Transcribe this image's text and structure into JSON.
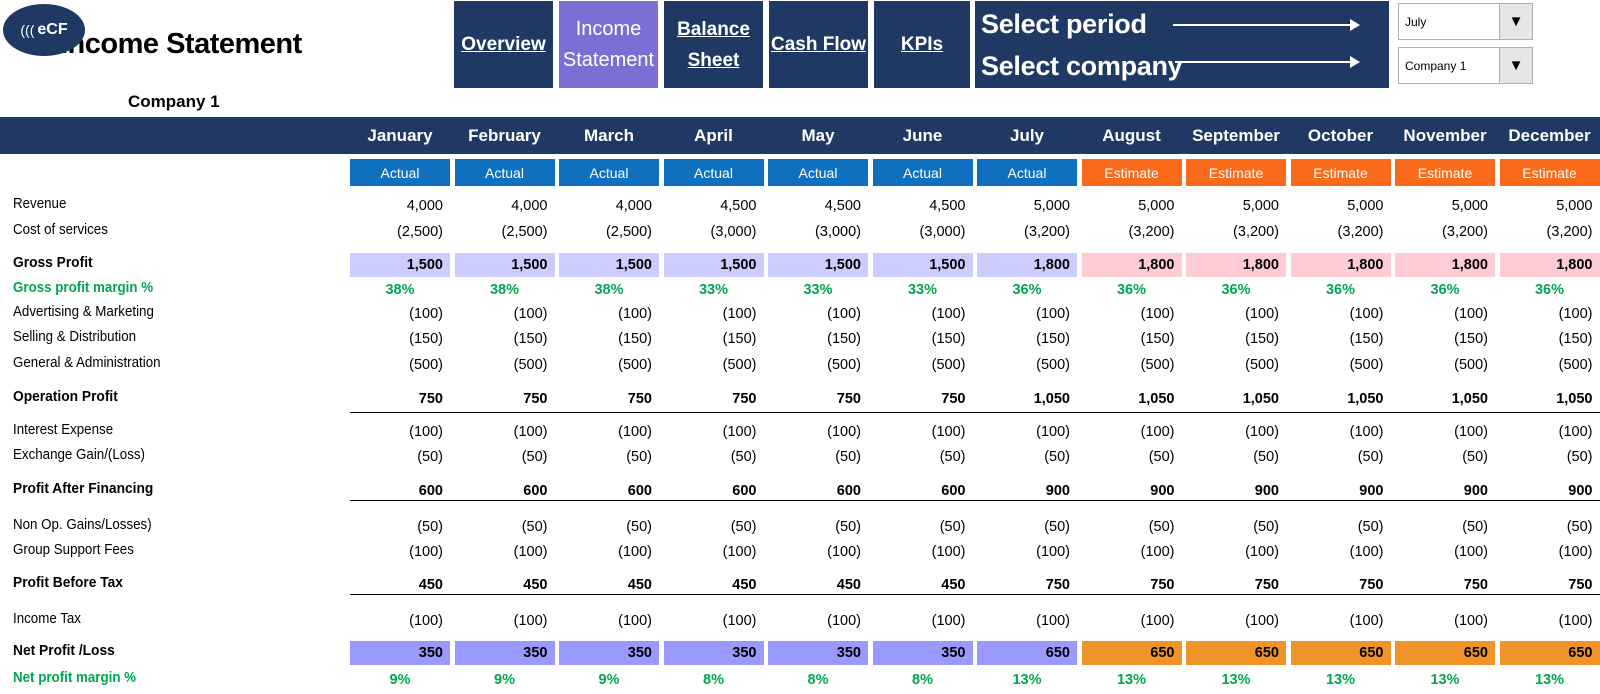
{
  "header": {
    "logo_text": "eCF",
    "logo_waves": "(((",
    "title": "Income Statement",
    "company_label": "Company 1"
  },
  "nav": [
    {
      "label": "Overview",
      "active": false
    },
    {
      "label": "Income Statement",
      "active": true
    },
    {
      "label": "Balance Sheet",
      "active": false
    },
    {
      "label": "Cash Flow",
      "active": false
    },
    {
      "label": "KPIs",
      "active": false
    }
  ],
  "selectors": {
    "period_label": "Select period",
    "company_label": "Select company",
    "period_value": "July",
    "company_value": "Company 1"
  },
  "months": [
    "January",
    "February",
    "March",
    "April",
    "May",
    "June",
    "July",
    "August",
    "September",
    "October",
    "November",
    "December"
  ],
  "actual_types": [
    "Actual",
    "Actual",
    "Actual",
    "Actual",
    "Actual",
    "Actual",
    "Actual",
    "Estimate",
    "Estimate",
    "Estimate",
    "Estimate",
    "Estimate"
  ],
  "rows": [
    {
      "label": "Revenue",
      "style": "normal",
      "values": [
        "4,000",
        "4,000",
        "4,000",
        "4,500",
        "4,500",
        "4,500",
        "5,000",
        "5,000",
        "5,000",
        "5,000",
        "5,000",
        "5,000"
      ]
    },
    {
      "label": "Cost of services",
      "style": "normal",
      "values": [
        "(2,500)",
        "(2,500)",
        "(2,500)",
        "(3,000)",
        "(3,000)",
        "(3,000)",
        "(3,200)",
        "(3,200)",
        "(3,200)",
        "(3,200)",
        "(3,200)",
        "(3,200)"
      ]
    },
    {
      "label": "Gross Profit",
      "style": "gross",
      "values": [
        "1,500",
        "1,500",
        "1,500",
        "1,500",
        "1,500",
        "1,500",
        "1,800",
        "1,800",
        "1,800",
        "1,800",
        "1,800",
        "1,800"
      ]
    },
    {
      "label": "Gross profit margin %",
      "style": "green",
      "values": [
        "38%",
        "38%",
        "38%",
        "33%",
        "33%",
        "33%",
        "36%",
        "36%",
        "36%",
        "36%",
        "36%",
        "36%"
      ]
    },
    {
      "label": "Advertising & Marketing",
      "style": "normal",
      "values": [
        "(100)",
        "(100)",
        "(100)",
        "(100)",
        "(100)",
        "(100)",
        "(100)",
        "(100)",
        "(100)",
        "(100)",
        "(100)",
        "(100)"
      ]
    },
    {
      "label": "Selling & Distribution",
      "style": "normal",
      "values": [
        "(150)",
        "(150)",
        "(150)",
        "(150)",
        "(150)",
        "(150)",
        "(150)",
        "(150)",
        "(150)",
        "(150)",
        "(150)",
        "(150)"
      ]
    },
    {
      "label": "General & Administration",
      "style": "normal",
      "values": [
        "(500)",
        "(500)",
        "(500)",
        "(500)",
        "(500)",
        "(500)",
        "(500)",
        "(500)",
        "(500)",
        "(500)",
        "(500)",
        "(500)"
      ]
    },
    {
      "label": "Operation Profit",
      "style": "bold",
      "values": [
        "750",
        "750",
        "750",
        "750",
        "750",
        "750",
        "1,050",
        "1,050",
        "1,050",
        "1,050",
        "1,050",
        "1,050"
      ]
    },
    {
      "label": "Interest Expense",
      "style": "normal",
      "values": [
        "(100)",
        "(100)",
        "(100)",
        "(100)",
        "(100)",
        "(100)",
        "(100)",
        "(100)",
        "(100)",
        "(100)",
        "(100)",
        "(100)"
      ]
    },
    {
      "label": "Exchange Gain/(Loss)",
      "style": "normal",
      "values": [
        "(50)",
        "(50)",
        "(50)",
        "(50)",
        "(50)",
        "(50)",
        "(50)",
        "(50)",
        "(50)",
        "(50)",
        "(50)",
        "(50)"
      ]
    },
    {
      "label": "Profit After Financing",
      "style": "bold",
      "values": [
        "600",
        "600",
        "600",
        "600",
        "600",
        "600",
        "900",
        "900",
        "900",
        "900",
        "900",
        "900"
      ]
    },
    {
      "label": "Non Op. Gains/Losses)",
      "style": "normal",
      "values": [
        "(50)",
        "(50)",
        "(50)",
        "(50)",
        "(50)",
        "(50)",
        "(50)",
        "(50)",
        "(50)",
        "(50)",
        "(50)",
        "(50)"
      ]
    },
    {
      "label": "Group Support Fees",
      "style": "normal",
      "values": [
        "(100)",
        "(100)",
        "(100)",
        "(100)",
        "(100)",
        "(100)",
        "(100)",
        "(100)",
        "(100)",
        "(100)",
        "(100)",
        "(100)"
      ]
    },
    {
      "label": "Profit Before Tax",
      "style": "bold",
      "values": [
        "450",
        "450",
        "450",
        "450",
        "450",
        "450",
        "750",
        "750",
        "750",
        "750",
        "750",
        "750"
      ]
    },
    {
      "label": "Income Tax",
      "style": "normal",
      "values": [
        "(100)",
        "(100)",
        "(100)",
        "(100)",
        "(100)",
        "(100)",
        "(100)",
        "(100)",
        "(100)",
        "(100)",
        "(100)",
        "(100)"
      ]
    },
    {
      "label": "Net Profit /Loss",
      "style": "net",
      "values": [
        "350",
        "350",
        "350",
        "350",
        "350",
        "350",
        "650",
        "650",
        "650",
        "650",
        "650",
        "650"
      ]
    },
    {
      "label": "Net profit margin %",
      "style": "green",
      "values": [
        "9%",
        "9%",
        "9%",
        "8%",
        "8%",
        "8%",
        "13%",
        "13%",
        "13%",
        "13%",
        "13%",
        "13%"
      ]
    }
  ],
  "colors": {
    "navy": "#1f3864",
    "active_nav": "#7b6fd6",
    "actual": "#1070c0",
    "estimate": "#f96a1b",
    "margin_green": "#00a650"
  }
}
